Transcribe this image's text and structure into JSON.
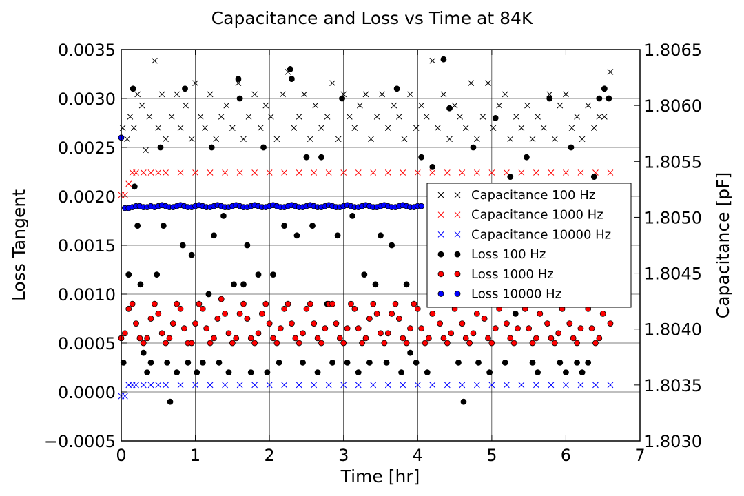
{
  "chart_data": {
    "type": "scatter",
    "title": "Capacitance and Loss vs Time at 84K",
    "xlabel": "Time [hr]",
    "ylabel_left": "Loss Tangent",
    "ylabel_right": "Capacitance [pF]",
    "xlim": [
      0,
      7
    ],
    "ylim_left": [
      -0.0005,
      0.0035
    ],
    "ylim_right": [
      1.803,
      1.8065
    ],
    "x_ticks": [
      "0",
      "1",
      "2",
      "3",
      "4",
      "5",
      "6",
      "7"
    ],
    "y_left_ticks": [
      "−0.0005",
      "0.0000",
      "0.0005",
      "0.0010",
      "0.0015",
      "0.0020",
      "0.0025",
      "0.0030",
      "0.0035"
    ],
    "y_right_ticks": [
      "1.8030",
      "1.8035",
      "1.8040",
      "1.8045",
      "1.8050",
      "1.8055",
      "1.8060",
      "1.8065"
    ],
    "grid": true,
    "legend_position": "center-right",
    "series": [
      {
        "name": "Capacitance 100 Hz",
        "axis": "right",
        "marker": "x",
        "color": "#000000",
        "x": [
          0.02,
          0.08,
          0.12,
          0.17,
          0.22,
          0.28,
          0.33,
          0.38,
          0.45,
          0.5,
          0.55,
          0.6,
          0.68,
          0.75,
          0.8,
          0.87,
          0.95,
          1.0,
          1.07,
          1.13,
          1.2,
          1.28,
          1.35,
          1.42,
          1.5,
          1.58,
          1.65,
          1.72,
          1.8,
          1.88,
          1.95,
          2.02,
          2.1,
          2.18,
          2.25,
          2.33,
          2.4,
          2.47,
          2.55,
          2.62,
          2.7,
          2.78,
          2.85,
          2.93,
          3.0,
          3.08,
          3.15,
          3.22,
          3.3,
          3.37,
          3.45,
          3.52,
          3.6,
          3.68,
          3.75,
          3.82,
          3.9,
          3.98,
          4.05,
          4.12,
          4.2,
          4.27,
          4.35,
          4.43,
          4.5,
          4.57,
          4.65,
          4.72,
          4.8,
          4.88,
          4.95,
          5.02,
          5.1,
          5.18,
          5.25,
          5.33,
          5.4,
          5.48,
          5.55,
          5.62,
          5.7,
          5.78,
          5.85,
          5.92,
          6.0,
          6.08,
          6.15,
          6.22,
          6.3,
          6.38,
          6.45,
          6.52,
          6.6
        ],
        "y": [
          1.8058,
          1.8057,
          1.8059,
          1.8058,
          1.8061,
          1.806,
          1.8056,
          1.8059,
          1.8064,
          1.8058,
          1.8061,
          1.8057,
          1.8059,
          1.8061,
          1.8058,
          1.806,
          1.8057,
          1.8062,
          1.8059,
          1.8058,
          1.8061,
          1.8057,
          1.8059,
          1.806,
          1.8058,
          1.8062,
          1.8057,
          1.8059,
          1.8061,
          1.8058,
          1.806,
          1.8059,
          1.8057,
          1.8061,
          1.8063,
          1.8058,
          1.8059,
          1.8061,
          1.8057,
          1.806,
          1.8058,
          1.8059,
          1.8062,
          1.8057,
          1.8061,
          1.8059,
          1.8058,
          1.806,
          1.8061,
          1.8057,
          1.8059,
          1.8061,
          1.8058,
          1.806,
          1.8059,
          1.8057,
          1.8061,
          1.8058,
          1.806,
          1.8059,
          1.8064,
          1.8058,
          1.8061,
          1.8057,
          1.806,
          1.8059,
          1.8058,
          1.8062,
          1.8057,
          1.8059,
          1.8062,
          1.8058,
          1.806,
          1.8061,
          1.8057,
          1.8059,
          1.8058,
          1.806,
          1.8057,
          1.8059,
          1.8058,
          1.8061,
          1.8057,
          1.806,
          1.8061,
          1.8058,
          1.8059,
          1.8057,
          1.806,
          1.8058,
          1.8059,
          1.8059,
          1.8063
        ]
      },
      {
        "name": "Capacitance 1000 Hz",
        "axis": "right",
        "marker": "x",
        "color": "#ff0000",
        "x": [
          0.0,
          0.05,
          0.1,
          0.15,
          0.2,
          0.3,
          0.4,
          0.5,
          0.6,
          0.8,
          1.0,
          1.2,
          1.4,
          1.6,
          1.8,
          2.0,
          2.2,
          2.4,
          2.6,
          2.8,
          3.0,
          3.2,
          3.4,
          3.6,
          3.8,
          4.0,
          4.2,
          4.4,
          4.6,
          4.8,
          5.0,
          5.2,
          5.4,
          5.6,
          5.8,
          6.0,
          6.2,
          6.4,
          6.6
        ],
        "y": [
          1.8052,
          1.8052,
          1.8053,
          1.8054,
          1.8054,
          1.8054,
          1.8054,
          1.8054,
          1.8054,
          1.8054,
          1.8054,
          1.8054,
          1.8054,
          1.8054,
          1.8054,
          1.8054,
          1.8054,
          1.8054,
          1.8054,
          1.8054,
          1.8054,
          1.8054,
          1.8054,
          1.8054,
          1.8054,
          1.8054,
          1.8054,
          1.8054,
          1.8054,
          1.8054,
          1.8054,
          1.8054,
          1.8054,
          1.8054,
          1.8054,
          1.8054,
          1.8054,
          1.8054,
          1.8054
        ]
      },
      {
        "name": "Capacitance 10000 Hz",
        "axis": "right",
        "marker": "x",
        "color": "#0000ff",
        "x": [
          0.0,
          0.05,
          0.1,
          0.15,
          0.2,
          0.3,
          0.4,
          0.5,
          0.6,
          0.8,
          1.0,
          1.2,
          1.4,
          1.6,
          1.8,
          2.0,
          2.2,
          2.4,
          2.6,
          2.8,
          3.0,
          3.2,
          3.4,
          3.6,
          3.8,
          4.0,
          4.2,
          4.4,
          4.6,
          4.8,
          5.0,
          5.2,
          5.4,
          5.6,
          5.8,
          6.0,
          6.2,
          6.4,
          6.6
        ],
        "y": [
          1.8034,
          1.8034,
          1.8035,
          1.8035,
          1.8035,
          1.8035,
          1.8035,
          1.8035,
          1.8035,
          1.8035,
          1.8035,
          1.8035,
          1.8035,
          1.8035,
          1.8035,
          1.8035,
          1.8035,
          1.8035,
          1.8035,
          1.8035,
          1.8035,
          1.8035,
          1.8035,
          1.8035,
          1.8035,
          1.8035,
          1.8035,
          1.8035,
          1.8035,
          1.8035,
          1.8035,
          1.8035,
          1.8035,
          1.8035,
          1.8035,
          1.8035,
          1.8035,
          1.8035,
          1.8035
        ]
      },
      {
        "name": "Loss 100 Hz",
        "axis": "left",
        "marker": "o",
        "color": "#000000",
        "x": [
          0.03,
          0.1,
          0.16,
          0.18,
          0.22,
          0.26,
          0.3,
          0.35,
          0.4,
          0.48,
          0.53,
          0.57,
          0.62,
          0.66,
          0.75,
          0.83,
          0.86,
          0.9,
          0.95,
          1.02,
          1.1,
          1.18,
          1.22,
          1.25,
          1.32,
          1.38,
          1.45,
          1.52,
          1.58,
          1.6,
          1.65,
          1.7,
          1.75,
          1.85,
          1.92,
          1.97,
          2.05,
          2.13,
          2.2,
          2.28,
          2.3,
          2.37,
          2.45,
          2.5,
          2.58,
          2.65,
          2.7,
          2.78,
          2.85,
          2.92,
          2.98,
          3.05,
          3.12,
          3.2,
          3.28,
          3.35,
          3.43,
          3.5,
          3.58,
          3.65,
          3.72,
          3.78,
          3.85,
          3.9,
          3.98,
          4.05,
          4.13,
          4.2,
          4.27,
          4.35,
          4.43,
          4.5,
          4.55,
          4.62,
          4.67,
          4.75,
          4.82,
          4.9,
          4.97,
          5.05,
          5.12,
          5.18,
          5.25,
          5.32,
          5.4,
          5.47,
          5.55,
          5.62,
          5.7,
          5.78,
          5.85,
          5.92,
          6.0,
          6.07,
          6.15,
          6.22,
          6.3,
          6.38,
          6.45,
          6.52,
          6.58
        ],
        "y": [
          0.0003,
          0.0012,
          0.0031,
          0.0021,
          0.0017,
          0.0011,
          0.0004,
          0.0002,
          0.0003,
          0.0012,
          0.0025,
          0.0017,
          0.0003,
          -0.0001,
          0.0002,
          0.0015,
          0.0031,
          0.0003,
          0.0014,
          0.0002,
          0.0003,
          0.001,
          0.0025,
          0.0016,
          0.0003,
          0.0018,
          0.0002,
          0.0011,
          0.0032,
          0.003,
          0.0011,
          0.0015,
          0.0002,
          0.0012,
          0.0025,
          0.0002,
          0.0012,
          0.0003,
          0.0017,
          0.0033,
          0.0032,
          0.0016,
          0.0003,
          0.0024,
          0.0017,
          0.0002,
          0.0024,
          0.0009,
          0.0003,
          0.0016,
          0.003,
          0.0003,
          0.0018,
          0.0002,
          0.0012,
          0.0003,
          0.0011,
          0.0016,
          0.0003,
          0.0015,
          0.0031,
          0.0002,
          0.0011,
          0.0004,
          0.0003,
          0.0024,
          0.0002,
          0.0023,
          0.0016,
          0.0034,
          0.0029,
          0.0021,
          0.0003,
          -0.0001,
          0.0021,
          0.0025,
          0.0003,
          0.0017,
          0.0002,
          0.0028,
          0.0014,
          0.0003,
          0.0022,
          0.0008,
          0.0017,
          0.0024,
          0.0003,
          0.0002,
          0.0016,
          0.003,
          0.0011,
          0.0003,
          0.0002,
          0.0025,
          0.0003,
          0.0002,
          0.0003,
          0.0022,
          0.003,
          0.0031,
          0.003
        ]
      },
      {
        "name": "Loss 1000 Hz",
        "axis": "left",
        "marker": "o",
        "color": "#ff0000",
        "x": [
          0.0,
          0.05,
          0.1,
          0.15,
          0.2,
          0.25,
          0.3,
          0.35,
          0.4,
          0.45,
          0.5,
          0.55,
          0.6,
          0.65,
          0.7,
          0.75,
          0.8,
          0.85,
          0.9,
          0.95,
          1.0,
          1.05,
          1.1,
          1.15,
          1.2,
          1.25,
          1.3,
          1.35,
          1.4,
          1.45,
          1.5,
          1.55,
          1.6,
          1.65,
          1.7,
          1.75,
          1.8,
          1.85,
          1.9,
          1.95,
          2.0,
          2.05,
          2.1,
          2.15,
          2.2,
          2.25,
          2.3,
          2.35,
          2.4,
          2.45,
          2.5,
          2.55,
          2.6,
          2.65,
          2.7,
          2.75,
          2.8,
          2.85,
          2.9,
          2.95,
          3.0,
          3.05,
          3.1,
          3.15,
          3.2,
          3.25,
          3.3,
          3.35,
          3.4,
          3.45,
          3.5,
          3.55,
          3.6,
          3.65,
          3.7,
          3.75,
          3.8,
          3.85,
          3.9,
          3.95,
          4.0,
          4.05,
          4.1,
          4.15,
          4.2,
          4.25,
          4.3,
          4.35,
          4.4,
          4.45,
          4.5,
          4.55,
          4.6,
          4.65,
          4.7,
          4.75,
          4.8,
          4.85,
          4.9,
          4.95,
          5.0,
          5.05,
          5.1,
          5.15,
          5.2,
          5.25,
          5.3,
          5.35,
          5.4,
          5.45,
          5.5,
          5.55,
          5.6,
          5.65,
          5.7,
          5.75,
          5.8,
          5.85,
          5.9,
          5.95,
          6.0,
          6.05,
          6.1,
          6.15,
          6.2,
          6.25,
          6.3,
          6.35,
          6.4,
          6.45,
          6.5,
          6.55,
          6.6
        ],
        "y": [
          0.00055,
          0.0006,
          0.00085,
          0.0009,
          0.0007,
          0.00055,
          0.0005,
          0.00055,
          0.00075,
          0.0009,
          0.0008,
          0.0006,
          0.0005,
          0.00055,
          0.0007,
          0.0009,
          0.00085,
          0.00065,
          0.0005,
          0.0005,
          0.0007,
          0.0009,
          0.00085,
          0.00065,
          0.0005,
          0.00055,
          0.00075,
          0.00095,
          0.0008,
          0.0006,
          0.0005,
          0.00055,
          0.0008,
          0.0009,
          0.00075,
          0.00055,
          0.0005,
          0.0006,
          0.0008,
          0.0009,
          0.0007,
          0.00055,
          0.0005,
          0.00065,
          0.00085,
          0.0009,
          0.0007,
          0.00055,
          0.0005,
          0.0006,
          0.00085,
          0.0009,
          0.0007,
          0.00055,
          0.0005,
          0.00065,
          0.0009,
          0.0009,
          0.0007,
          0.00055,
          0.0005,
          0.00065,
          0.0009,
          0.00085,
          0.00065,
          0.0005,
          0.00055,
          0.00075,
          0.0009,
          0.0008,
          0.0006,
          0.0005,
          0.0006,
          0.0008,
          0.0009,
          0.00075,
          0.00055,
          0.0005,
          0.00065,
          0.0009,
          0.00085,
          0.00065,
          0.0005,
          0.00055,
          0.0008,
          0.0009,
          0.0007,
          0.00055,
          0.0005,
          0.0006,
          0.00085,
          0.0009,
          0.0007,
          0.00055,
          0.0005,
          0.0006,
          0.0008,
          0.0009,
          0.00075,
          0.00055,
          0.0005,
          0.00065,
          0.00085,
          0.0009,
          0.0007,
          0.00055,
          0.0005,
          0.00065,
          0.0009,
          0.00085,
          0.00065,
          0.0005,
          0.00055,
          0.0008,
          0.0009,
          0.0007,
          0.00055,
          0.0005,
          0.0006,
          0.00085,
          0.0009,
          0.0007,
          0.00055,
          0.0005,
          0.00065,
          0.0009,
          0.00085,
          0.00065,
          0.0005,
          0.00055,
          0.0008,
          0.0009,
          0.0007
        ]
      },
      {
        "name": "Loss 10000 Hz",
        "axis": "left",
        "marker": "o",
        "color": "#0000ff",
        "x": [
          0.0,
          0.05,
          0.1,
          0.15,
          0.2,
          0.25,
          0.3,
          0.35,
          0.4,
          0.45,
          0.5,
          0.55,
          0.6,
          0.65,
          0.7,
          0.75,
          0.8,
          0.85,
          0.9,
          0.95,
          1.0,
          1.05,
          1.1,
          1.15,
          1.2,
          1.25,
          1.3,
          1.35,
          1.4,
          1.45,
          1.5,
          1.55,
          1.6,
          1.65,
          1.7,
          1.75,
          1.8,
          1.85,
          1.9,
          1.95,
          2.0,
          2.05,
          2.1,
          2.15,
          2.2,
          2.25,
          2.3,
          2.35,
          2.4,
          2.45,
          2.5,
          2.55,
          2.6,
          2.65,
          2.7,
          2.75,
          2.8,
          2.85,
          2.9,
          2.95,
          3.0,
          3.05,
          3.1,
          3.15,
          3.2,
          3.25,
          3.3,
          3.35,
          3.4,
          3.45,
          3.5,
          3.55,
          3.6,
          3.65,
          3.7,
          3.75,
          3.8,
          3.85,
          3.9,
          3.95,
          4.0,
          4.05
        ],
        "y": [
          0.0026,
          0.00188,
          0.00188,
          0.00189,
          0.0019,
          0.0019,
          0.00189,
          0.00189,
          0.0019,
          0.00189,
          0.0019,
          0.00191,
          0.0019,
          0.00189,
          0.00189,
          0.0019,
          0.00191,
          0.0019,
          0.00189,
          0.00189,
          0.0019,
          0.00191,
          0.0019,
          0.00189,
          0.00189,
          0.0019,
          0.00191,
          0.0019,
          0.00189,
          0.00189,
          0.0019,
          0.00191,
          0.0019,
          0.00189,
          0.00189,
          0.0019,
          0.00191,
          0.0019,
          0.00189,
          0.00189,
          0.0019,
          0.00191,
          0.0019,
          0.00189,
          0.00189,
          0.0019,
          0.00191,
          0.0019,
          0.00189,
          0.00189,
          0.0019,
          0.00191,
          0.0019,
          0.00189,
          0.00189,
          0.0019,
          0.00191,
          0.0019,
          0.00189,
          0.00189,
          0.0019,
          0.00191,
          0.0019,
          0.00189,
          0.00189,
          0.0019,
          0.00191,
          0.0019,
          0.00189,
          0.00189,
          0.0019,
          0.00191,
          0.0019,
          0.00189,
          0.00189,
          0.0019,
          0.00191,
          0.0019,
          0.00189,
          0.00189,
          0.0019,
          0.0019
        ]
      }
    ]
  }
}
